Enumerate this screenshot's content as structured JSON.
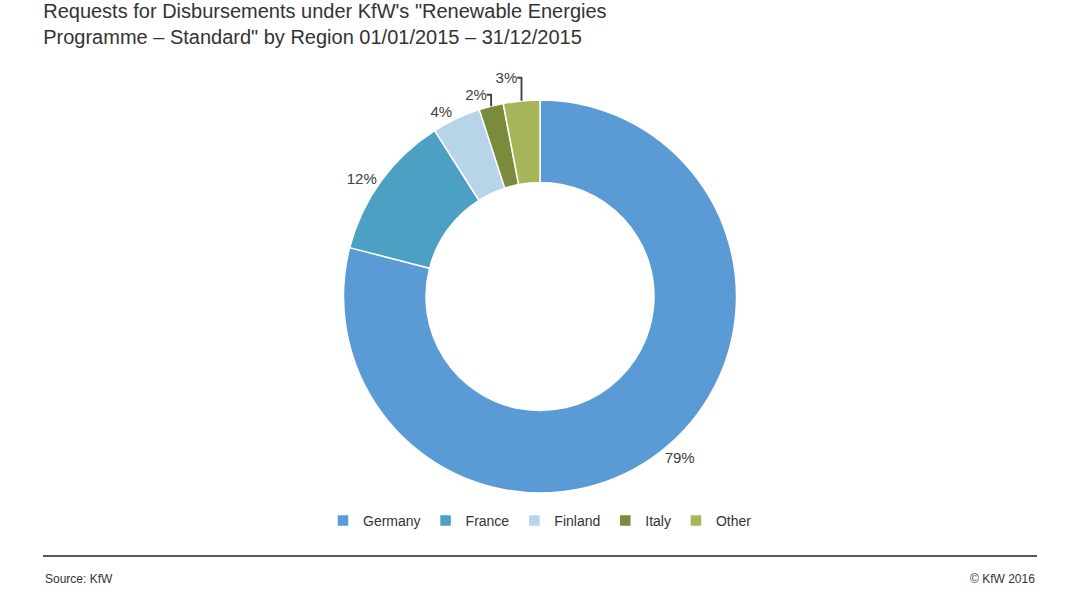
{
  "chart_data": {
    "type": "pie",
    "title": "Requests for Disbursements under KfW's \"Renewable Energies\nProgramme – Standard\" by Region 01/01/2015 – 31/12/2015",
    "categories": [
      "Germany",
      "France",
      "Finland",
      "Italy",
      "Other"
    ],
    "values": [
      79,
      12,
      4,
      2,
      3
    ],
    "value_labels": [
      "79%",
      "12%",
      "4%",
      "2%",
      "3%"
    ],
    "data_labels": true,
    "colors": [
      "#5b9bd5",
      "#4ba0c4",
      "#b8d4e8",
      "#7a8c3c",
      "#a8b45a"
    ],
    "legend": "bottom",
    "annotations": [
      "Source: KfW",
      "© KfW 2016"
    ]
  }
}
